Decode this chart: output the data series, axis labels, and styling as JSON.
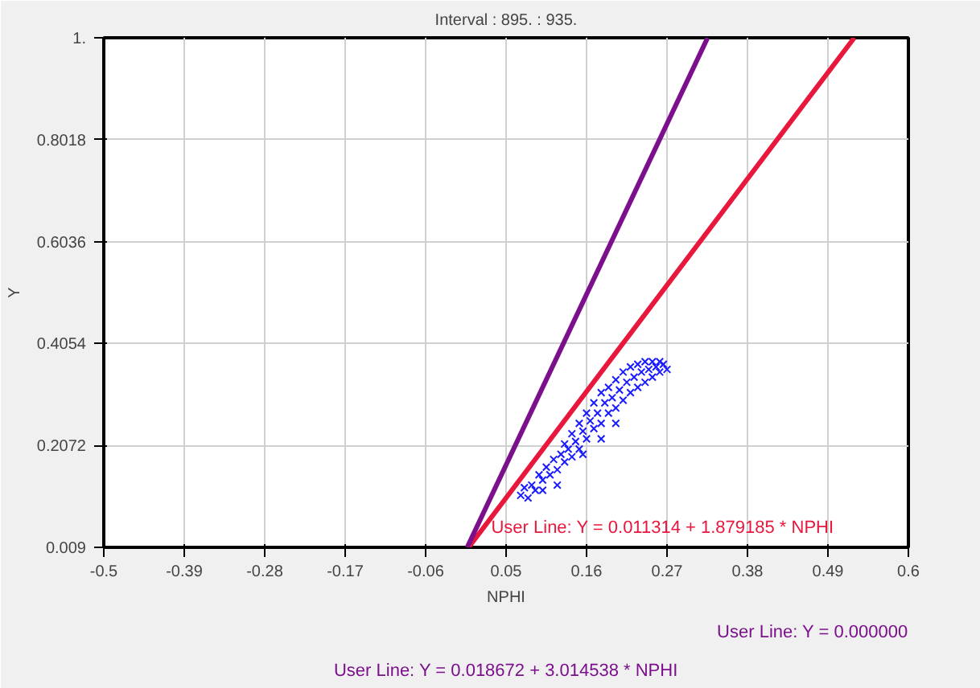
{
  "chart_data": {
    "type": "scatter",
    "title": "Interval : 895. : 935.",
    "xlabel": "NPHI",
    "ylabel": "Y",
    "xlim": [
      -0.5,
      0.6
    ],
    "ylim": [
      0.009,
      1
    ],
    "xticks": [
      -0.5,
      -0.39,
      -0.28,
      -0.17,
      -0.06,
      0.05,
      0.16,
      0.27,
      0.38,
      0.49,
      0.6
    ],
    "yticks": [
      0.009,
      0.2072,
      0.4054,
      0.6036,
      0.8018,
      {
        "value": 1,
        "label": "1."
      }
    ],
    "grid": true,
    "series": [
      {
        "marker": "cross",
        "color": "#1a1aff",
        "x": [
          0.07,
          0.075,
          0.08,
          0.085,
          0.09,
          0.095,
          0.1,
          0.105,
          0.11,
          0.115,
          0.12,
          0.125,
          0.13,
          0.13,
          0.135,
          0.14,
          0.14,
          0.145,
          0.15,
          0.15,
          0.155,
          0.16,
          0.16,
          0.165,
          0.17,
          0.17,
          0.175,
          0.18,
          0.18,
          0.185,
          0.19,
          0.19,
          0.195,
          0.2,
          0.2,
          0.205,
          0.21,
          0.21,
          0.215,
          0.22,
          0.22,
          0.225,
          0.23,
          0.23,
          0.235,
          0.24,
          0.24,
          0.245,
          0.25,
          0.25,
          0.255,
          0.26,
          0.26,
          0.265,
          0.27,
          0.12,
          0.18,
          0.2,
          0.155,
          0.1
        ],
        "values": [
          0.11,
          0.125,
          0.105,
          0.13,
          0.12,
          0.15,
          0.14,
          0.165,
          0.15,
          0.18,
          0.16,
          0.19,
          0.175,
          0.21,
          0.2,
          0.185,
          0.23,
          0.215,
          0.2,
          0.25,
          0.235,
          0.22,
          0.27,
          0.255,
          0.24,
          0.29,
          0.27,
          0.25,
          0.31,
          0.29,
          0.27,
          0.32,
          0.3,
          0.28,
          0.335,
          0.315,
          0.295,
          0.35,
          0.33,
          0.31,
          0.36,
          0.34,
          0.32,
          0.365,
          0.35,
          0.33,
          0.37,
          0.355,
          0.34,
          0.37,
          0.36,
          0.35,
          0.37,
          0.365,
          0.355,
          0.13,
          0.22,
          0.25,
          0.19,
          0.12
        ]
      },
      {
        "type": "line",
        "color": "#e8173c",
        "x": [
          -0.0012,
          0.526
        ],
        "values": [
          0.009,
          1
        ]
      },
      {
        "type": "line",
        "color": "#7b0f8c",
        "x": [
          -0.0032,
          0.3255
        ],
        "values": [
          0.009,
          1
        ]
      }
    ],
    "annotations": [
      {
        "text": "User Line: Y = 0.011314 + 1.879185 * NPHI",
        "x": -0.0012,
        "y": 0.009
      },
      "User Line: Y = 0.000000",
      "User Line: Y = 0.018672 + 3.014538 * NPHI"
    ]
  }
}
